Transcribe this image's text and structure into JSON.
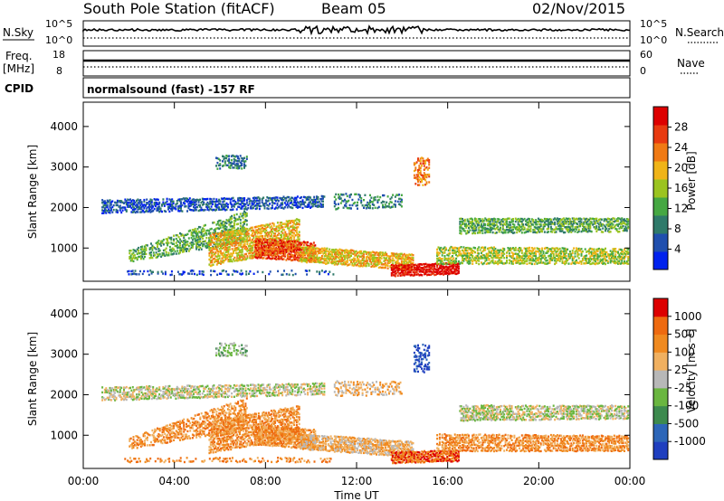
{
  "header": {
    "title": "South Pole Station (fitACF)",
    "beam": "Beam 05",
    "date": "02/Nov/2015"
  },
  "status_panels": {
    "nsky_label": "N.Sky",
    "nsky_ticks": [
      "10^5",
      "10^0"
    ],
    "nsearch_label": "N.Search",
    "nsearch_ticks": [
      "10^5",
      "10^0"
    ],
    "freq_label": "Freq.",
    "freq_unit": "[MHz]",
    "freq_ticks": [
      "18",
      "8"
    ],
    "nave_label": "Nave",
    "nave_ticks": [
      "60",
      "0"
    ],
    "cpid_label": "CPID",
    "cpid_value": "normalsound (fast) -157 RF"
  },
  "chart_data": [
    {
      "type": "heatmap",
      "name": "power",
      "ylabel": "Slant Range [km]",
      "xlabel": "",
      "ylim": [
        180,
        4600
      ],
      "xlim": [
        0,
        24
      ],
      "yticks": [
        "1000",
        "2000",
        "3000",
        "4000"
      ],
      "colorbar_label": "Power [dB]",
      "colorbar_ticks": [
        "28",
        "24",
        "20",
        "16",
        "12",
        "8",
        "4"
      ],
      "colors": [
        "#0022ee",
        "#204fae",
        "#2f7a6a",
        "#46a843",
        "#9bc420",
        "#f0b418",
        "#f07a14",
        "#e83a10",
        "#dd0000"
      ]
    },
    {
      "type": "heatmap",
      "name": "velocity",
      "ylabel": "Slant Range [km]",
      "xlabel": "Time UT",
      "ylim": [
        180,
        4600
      ],
      "xlim": [
        0,
        24
      ],
      "yticks": [
        "1000",
        "2000",
        "3000",
        "4000"
      ],
      "xticks": [
        "00:00",
        "04:00",
        "08:00",
        "12:00",
        "16:00",
        "20:00",
        "00:00"
      ],
      "colorbar_label": "Velocity [m s⁻¹]",
      "colorbar_ticks": [
        "1000",
        "500",
        "100",
        "25",
        "-25",
        "-100",
        "-500",
        "-1000"
      ],
      "colors": [
        "#1f3fbf",
        "#2d66b8",
        "#3d8a4e",
        "#6ab640",
        "#b8b8b8",
        "#f0b060",
        "#f08a20",
        "#ee6a10",
        "#dd0000"
      ]
    }
  ]
}
